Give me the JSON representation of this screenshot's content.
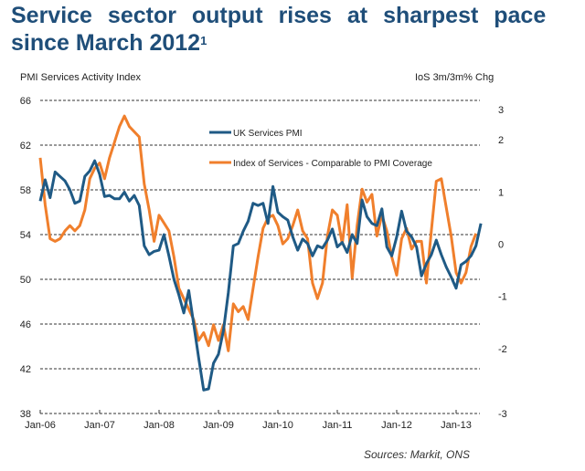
{
  "title": {
    "line1": "Service sector output rises at sharpest pace",
    "line2": "since March 2012",
    "footnote_marker": "1"
  },
  "source": "Sources: Markit, ONS",
  "colors": {
    "pmi": "#1f5a85",
    "ios": "#f07f2c",
    "text": "#222222",
    "grid": "#333333"
  },
  "chart_data": {
    "type": "line",
    "title": "Service sector output rises at sharpest pace since March 2012",
    "ylabel": "PMI Services Activity Index",
    "y2label": "IoS 3m/3m% Chg",
    "ylim": [
      38,
      66
    ],
    "y2lim": [
      -3,
      3
    ],
    "yticks": [
      "66",
      "62",
      "58",
      "54",
      "50",
      "46",
      "42",
      "38"
    ],
    "y2ticks": [
      "3",
      "2",
      "1",
      "0",
      "-1",
      "-2",
      "-3"
    ],
    "xticks": [
      "Jan-06",
      "Jan-07",
      "Jan-08",
      "Jan-09",
      "Jan-10",
      "Jan-11",
      "Jan-12",
      "Jan-13"
    ],
    "x_start": "2006-01",
    "x_end": "2013-04",
    "grid": true,
    "legend": "top-center",
    "series": [
      {
        "name": "UK Services PMI",
        "axis": "left",
        "values": [
          57.0,
          58.9,
          57.3,
          59.6,
          59.2,
          58.8,
          58.0,
          56.8,
          57.0,
          59.2,
          59.7,
          60.6,
          59.4,
          57.4,
          57.5,
          57.2,
          57.2,
          57.8,
          57.0,
          57.5,
          56.6,
          53.0,
          52.2,
          52.5,
          52.6,
          54.0,
          52.1,
          50.0,
          48.6,
          47.0,
          49.0,
          46.0,
          43.0,
          40.1,
          40.2,
          42.5,
          43.3,
          45.4,
          48.8,
          53.0,
          53.2,
          54.3,
          55.2,
          56.8,
          56.6,
          56.8,
          55.0,
          58.3,
          56.0,
          55.6,
          55.3,
          53.8,
          52.6,
          53.6,
          53.2,
          52.1,
          53.0,
          52.8,
          53.5,
          54.5,
          52.9,
          53.3,
          52.4,
          54.0,
          53.2,
          57.1,
          55.6,
          55.0,
          54.8,
          56.3,
          52.9,
          52.1,
          53.8,
          56.1,
          54.3,
          53.8,
          52.9,
          50.3,
          51.4,
          52.2,
          53.5,
          52.2,
          51.1,
          50.2,
          49.2,
          51.3,
          51.6,
          52.1,
          53.0,
          55.0
        ]
      },
      {
        "name": "Index of Services - Comparable to PMI Coverage",
        "axis": "right",
        "values": [
          1.9,
          1.0,
          0.35,
          0.3,
          0.35,
          0.5,
          0.6,
          0.5,
          0.6,
          0.9,
          1.5,
          1.7,
          1.8,
          1.5,
          1.9,
          2.2,
          2.5,
          2.7,
          2.5,
          2.4,
          2.3,
          1.4,
          0.9,
          0.3,
          0.8,
          0.65,
          0.5,
          0.0,
          -0.6,
          -0.8,
          -1.0,
          -1.2,
          -1.6,
          -1.45,
          -1.7,
          -1.3,
          -1.6,
          -1.3,
          -1.8,
          -0.9,
          -1.05,
          -0.95,
          -1.2,
          -0.6,
          0.0,
          0.55,
          0.75,
          0.8,
          0.6,
          0.25,
          0.35,
          0.6,
          0.9,
          0.5,
          0.35,
          -0.5,
          -0.8,
          -0.5,
          0.4,
          0.9,
          0.8,
          0.25,
          1.0,
          -0.4,
          0.6,
          1.3,
          1.05,
          1.2,
          0.4,
          0.8,
          0.5,
          0.0,
          -0.35,
          0.35,
          0.55,
          0.15,
          0.3,
          0.3,
          -0.5,
          0.5,
          1.45,
          1.5,
          0.95,
          0.4,
          -0.3,
          -0.5,
          -0.3,
          0.2,
          0.45
        ]
      }
    ]
  }
}
